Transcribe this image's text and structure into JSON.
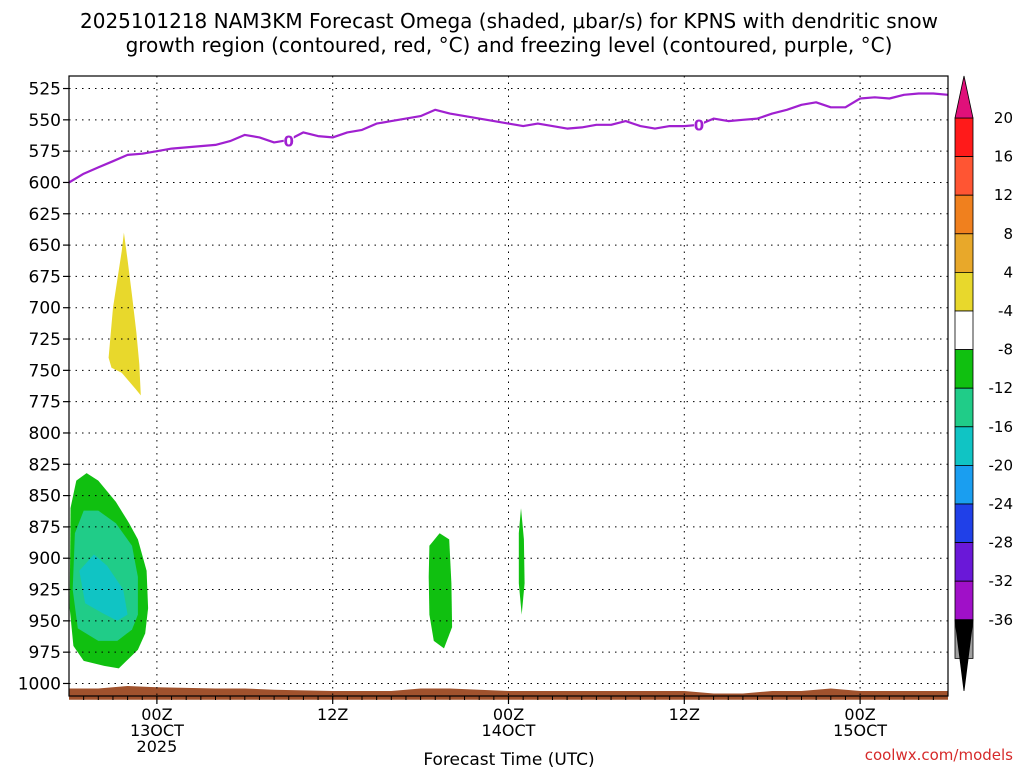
{
  "title_line1": "2025101218 NAM3KM Forecast Omega (shaded, μbar/s) for KPNS with dendritic snow",
  "title_line2": "growth region (contoured, red, °C) and freezing level (contoured, purple, °C)",
  "xlabel": "Forecast Time (UTC)",
  "credit": "coolwx.com/models",
  "chart_data": {
    "type": "time-height contour",
    "title": "2025101218 NAM3KM Forecast Omega (shaded, μbar/s) for KPNS with dendritic snow growth region (contoured, red, °C) and freezing level (contoured, purple, °C)",
    "xlabel": "Forecast Time (UTC)",
    "ylabel": "",
    "x_range_hours": [
      18,
      78
    ],
    "x_ticks": [
      {
        "hour": 24,
        "lines": [
          "00Z",
          "13OCT",
          "2025"
        ]
      },
      {
        "hour": 36,
        "lines": [
          "12Z"
        ]
      },
      {
        "hour": 48,
        "lines": [
          "00Z",
          "14OCT"
        ]
      },
      {
        "hour": 60,
        "lines": [
          "12Z"
        ]
      },
      {
        "hour": 72,
        "lines": [
          "00Z",
          "15OCT"
        ]
      }
    ],
    "y_range_hPa": [
      1010,
      515
    ],
    "y_ticks": [
      525,
      550,
      575,
      600,
      625,
      650,
      675,
      700,
      725,
      750,
      775,
      800,
      825,
      850,
      875,
      900,
      925,
      950,
      975,
      1000
    ],
    "grid": "dotted",
    "colorbar": {
      "unit": "μbar/s",
      "levels": [
        20,
        16,
        12,
        8,
        4,
        -4,
        -8,
        -12,
        -16,
        -20,
        -24,
        -28,
        -32,
        -36
      ],
      "colors": [
        "#ff1a1a",
        "#ff5533",
        "#f0801e",
        "#e8a82a",
        "#e8d82c",
        "#ffffff",
        "#10c010",
        "#20cc88",
        "#10c4c4",
        "#1a9ef0",
        "#2040e8",
        "#6a18d8",
        "#a010c8",
        "#a0a0a0"
      ],
      "top_arrow_color": "#e0107a",
      "bottom_arrow_color": "#000000"
    },
    "freezing_level": {
      "label": "0",
      "color": "#a020d0",
      "hours": [
        18,
        19,
        20,
        21,
        22,
        23,
        24,
        25,
        26,
        27,
        28,
        29,
        30,
        31,
        32,
        33,
        34,
        35,
        36,
        37,
        38,
        39,
        40,
        41,
        42,
        43,
        44,
        45,
        46,
        47,
        48,
        49,
        50,
        51,
        52,
        53,
        54,
        55,
        56,
        57,
        58,
        59,
        60,
        61,
        62,
        63,
        64,
        65,
        66,
        67,
        68,
        69,
        70,
        71,
        72,
        73,
        74,
        75,
        76,
        77,
        78
      ],
      "hPa": [
        600,
        593,
        588,
        583,
        578,
        577,
        575,
        573,
        572,
        571,
        570,
        567,
        562,
        564,
        568,
        566,
        560,
        563,
        564,
        560,
        558,
        553,
        551,
        549,
        547,
        542,
        545,
        547,
        549,
        551,
        553,
        555,
        553,
        555,
        557,
        556,
        554,
        554,
        551,
        555,
        557,
        555,
        555,
        554,
        549,
        551,
        550,
        549,
        545,
        542,
        538,
        536,
        540,
        540,
        533,
        532,
        533,
        530,
        529,
        529,
        530
      ],
      "label_positions": [
        {
          "hour": 33,
          "hPa": 567
        },
        {
          "hour": 61,
          "hPa": 554
        }
      ]
    },
    "omega_regions": [
      {
        "level": "4 to 8",
        "color": "#e8d82c",
        "points": [
          [
            20.7,
            740
          ],
          [
            21.0,
            700
          ],
          [
            21.4,
            670
          ],
          [
            21.6,
            655
          ],
          [
            21.75,
            640
          ],
          [
            22.0,
            662
          ],
          [
            22.3,
            690
          ],
          [
            22.6,
            720
          ],
          [
            22.8,
            745
          ],
          [
            22.9,
            770
          ],
          [
            22.55,
            765
          ],
          [
            21.6,
            752
          ],
          [
            20.9,
            748
          ]
        ]
      },
      {
        "level": "-4 to -8",
        "color": "#10c010",
        "points": [
          [
            18.1,
            860
          ],
          [
            18.5,
            838
          ],
          [
            19.2,
            832
          ],
          [
            20.0,
            838
          ],
          [
            21.2,
            855
          ],
          [
            22.1,
            872
          ],
          [
            22.7,
            885
          ],
          [
            23.3,
            910
          ],
          [
            23.4,
            940
          ],
          [
            23.2,
            960
          ],
          [
            22.7,
            973
          ],
          [
            21.4,
            988
          ],
          [
            20.4,
            986
          ],
          [
            19.0,
            982
          ],
          [
            18.3,
            970
          ],
          [
            18.05,
            940
          ]
        ]
      },
      {
        "level": "-8 to -12",
        "color": "#20cc88",
        "points": [
          [
            18.4,
            880
          ],
          [
            19.0,
            862
          ],
          [
            20.0,
            862
          ],
          [
            21.2,
            872
          ],
          [
            22.3,
            890
          ],
          [
            22.7,
            915
          ],
          [
            22.7,
            945
          ],
          [
            22.3,
            957
          ],
          [
            21.3,
            966
          ],
          [
            20.0,
            966
          ],
          [
            18.6,
            956
          ],
          [
            18.25,
            925
          ]
        ]
      },
      {
        "level": "-12 to -16",
        "color": "#10c4c4",
        "points": [
          [
            18.7,
            910
          ],
          [
            19.7,
            897
          ],
          [
            20.6,
            906
          ],
          [
            21.7,
            925
          ],
          [
            22.0,
            945
          ],
          [
            21.3,
            950
          ],
          [
            20.3,
            944
          ],
          [
            19.1,
            936
          ]
        ]
      },
      {
        "level": "-4 to -8",
        "color": "#10c010",
        "points": [
          [
            42.6,
            890
          ],
          [
            43.3,
            880
          ],
          [
            43.95,
            885
          ],
          [
            44.1,
            920
          ],
          [
            44.15,
            955
          ],
          [
            43.6,
            972
          ],
          [
            42.9,
            966
          ],
          [
            42.6,
            945
          ],
          [
            42.55,
            915
          ]
        ]
      },
      {
        "level": "-4 to -8",
        "color": "#10c010",
        "points": [
          [
            48.7,
            880
          ],
          [
            48.85,
            860
          ],
          [
            49.05,
            885
          ],
          [
            49.1,
            920
          ],
          [
            48.9,
            945
          ],
          [
            48.7,
            920
          ]
        ]
      }
    ],
    "terrain": {
      "color": "#a0522d",
      "hours": [
        18,
        20,
        22,
        24,
        28,
        30,
        32,
        36,
        38,
        40,
        42,
        44,
        46,
        48,
        50,
        52,
        54,
        56,
        58,
        60,
        62,
        64,
        66,
        68,
        70,
        72,
        74,
        76,
        78
      ],
      "hPa": [
        1004,
        1004,
        1002,
        1003,
        1004,
        1004,
        1005,
        1006,
        1006,
        1006,
        1004,
        1004,
        1005,
        1006,
        1006,
        1006,
        1006,
        1006,
        1006,
        1006,
        1008,
        1008,
        1006,
        1006,
        1004,
        1006,
        1006,
        1006,
        1006
      ],
      "bottom_hPa": 1013
    }
  }
}
